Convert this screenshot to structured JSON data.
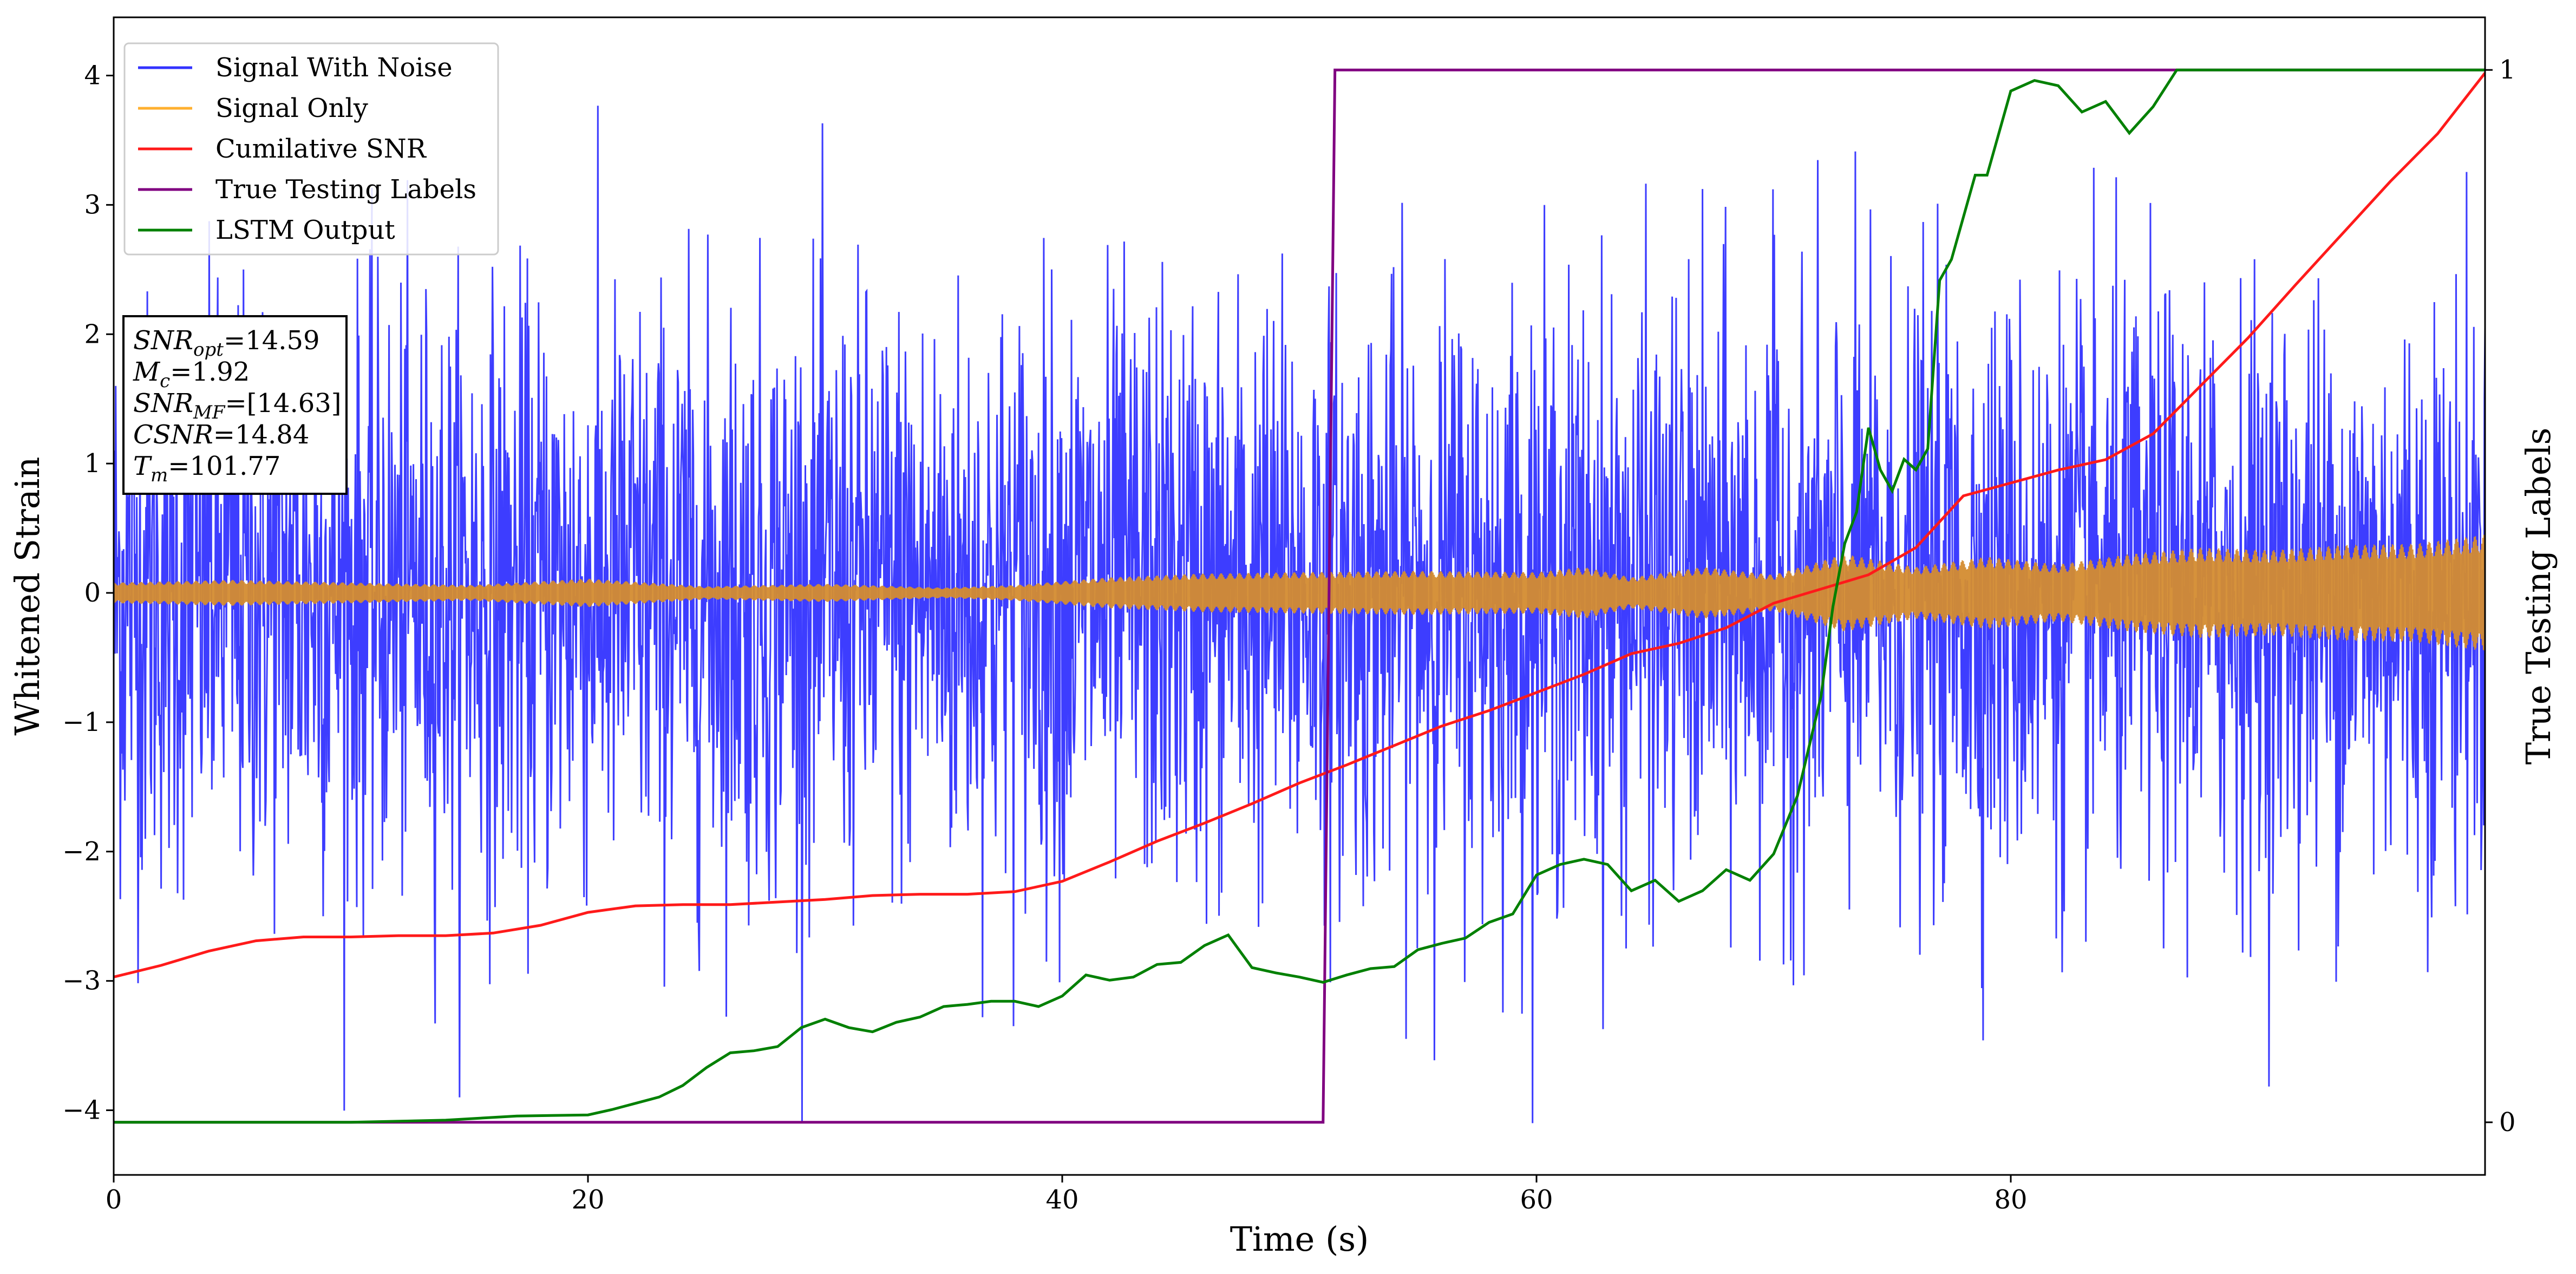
{
  "chart_data": {
    "type": "line",
    "xlabel": "Time (s)",
    "ylabel": "Whitened Strain",
    "ylabel_right": "True Testing Labels",
    "xlim": [
      0,
      100
    ],
    "ylim": [
      -4.5,
      4.45
    ],
    "ylim_right": [
      -0.05,
      1.05
    ],
    "x_ticks": [
      "0",
      "20",
      "40",
      "60",
      "80"
    ],
    "x_tick_values": [
      0,
      20,
      40,
      60,
      80
    ],
    "y_ticks": [
      "−4",
      "−3",
      "−2",
      "−1",
      "0",
      "1",
      "2",
      "3",
      "4"
    ],
    "y_tick_values": [
      -4,
      -3,
      -2,
      -1,
      0,
      1,
      2,
      3,
      4
    ],
    "y_right_ticks": [
      "0",
      "1"
    ],
    "y_right_tick_values": [
      0,
      1
    ],
    "legend_position": "top-left",
    "grid": false,
    "series": [
      {
        "name": "Signal With Noise",
        "color": "#3333ff",
        "axis": "left",
        "description_envelope": {
          "typical_abs": 1.3,
          "peak_abs": 4.1
        },
        "x": [
          0,
          100
        ],
        "y_range": [
          -4.1,
          4.05
        ]
      },
      {
        "name": "Signal Only",
        "color": "#ffb030",
        "axis": "left",
        "envelope_x": [
          0,
          5,
          10,
          15,
          20,
          25,
          30,
          35,
          38,
          42,
          46,
          50,
          55,
          60,
          62,
          64,
          67,
          70,
          73,
          76,
          79,
          82,
          85,
          88,
          91,
          94,
          97,
          100
        ],
        "envelope_y": [
          0.08,
          0.1,
          0.08,
          0.06,
          0.11,
          0.05,
          0.07,
          0.04,
          0.06,
          0.12,
          0.15,
          0.16,
          0.17,
          0.16,
          0.2,
          0.12,
          0.2,
          0.14,
          0.3,
          0.2,
          0.28,
          0.22,
          0.3,
          0.35,
          0.33,
          0.37,
          0.38,
          0.45
        ]
      },
      {
        "name": "Cumilative SNR",
        "color": "#ff1a1a",
        "axis": "left",
        "x": [
          0,
          2,
          4,
          6,
          8,
          10,
          12,
          14,
          16,
          18,
          20,
          22,
          24,
          26,
          28,
          30,
          32,
          34,
          36,
          38,
          40,
          42,
          44,
          46,
          48,
          50,
          52,
          54,
          56,
          58,
          60,
          62,
          64,
          66,
          68,
          70,
          72,
          74,
          76,
          78,
          80,
          82,
          84,
          86,
          88,
          90,
          92,
          94,
          96,
          98,
          100
        ],
        "y": [
          -2.97,
          -2.88,
          -2.77,
          -2.69,
          -2.66,
          -2.66,
          -2.65,
          -2.65,
          -2.63,
          -2.57,
          -2.47,
          -2.42,
          -2.41,
          -2.41,
          -2.39,
          -2.37,
          -2.34,
          -2.33,
          -2.33,
          -2.31,
          -2.23,
          -2.08,
          -1.92,
          -1.78,
          -1.63,
          -1.47,
          -1.33,
          -1.18,
          -1.03,
          -0.91,
          -0.77,
          -0.63,
          -0.47,
          -0.39,
          -0.27,
          -0.08,
          0.03,
          0.14,
          0.35,
          0.75,
          0.85,
          0.95,
          1.03,
          1.23,
          1.6,
          1.97,
          2.38,
          2.78,
          3.18,
          3.55,
          4.02
        ]
      },
      {
        "name": "True Testing Labels",
        "color": "#800080",
        "axis": "right",
        "x": [
          0,
          51,
          51.5,
          100
        ],
        "y": [
          0,
          0,
          1,
          1
        ]
      },
      {
        "name": "LSTM Output",
        "color": "#008000",
        "axis": "right",
        "x": [
          0,
          10,
          14,
          17,
          20,
          21,
          22,
          23,
          24,
          25,
          26,
          27,
          28,
          29,
          30,
          31,
          32,
          33,
          34,
          35,
          36,
          37,
          38,
          39,
          40,
          41,
          42,
          43,
          44,
          45,
          46,
          47,
          48,
          49,
          50,
          51,
          52,
          53,
          54,
          55,
          56,
          57,
          58,
          59,
          60,
          61,
          62,
          63,
          64,
          65,
          66,
          67,
          68,
          69,
          70,
          71,
          72,
          72.5,
          73,
          73.5,
          74,
          74.5,
          75,
          75.5,
          76,
          76.5,
          77,
          77.5,
          78,
          78.5,
          79,
          80,
          81,
          82,
          83,
          84,
          85,
          86,
          87,
          88,
          90,
          92,
          95,
          100
        ],
        "y": [
          0.0,
          0.0,
          0.002,
          0.006,
          0.007,
          0.012,
          0.018,
          0.024,
          0.035,
          0.052,
          0.066,
          0.068,
          0.072,
          0.09,
          0.098,
          0.09,
          0.086,
          0.095,
          0.1,
          0.11,
          0.112,
          0.115,
          0.115,
          0.11,
          0.12,
          0.14,
          0.135,
          0.138,
          0.15,
          0.152,
          0.168,
          0.178,
          0.147,
          0.142,
          0.138,
          0.133,
          0.14,
          0.146,
          0.148,
          0.164,
          0.17,
          0.175,
          0.19,
          0.198,
          0.235,
          0.245,
          0.25,
          0.245,
          0.22,
          0.23,
          0.21,
          0.22,
          0.24,
          0.23,
          0.255,
          0.31,
          0.405,
          0.49,
          0.55,
          0.58,
          0.66,
          0.62,
          0.6,
          0.63,
          0.62,
          0.64,
          0.8,
          0.82,
          0.86,
          0.9,
          0.9,
          0.98,
          0.99,
          0.985,
          0.96,
          0.97,
          0.94,
          0.965,
          1.0,
          1.0,
          1.0,
          1.0,
          1.0,
          1.0
        ]
      }
    ],
    "legend": [
      "Signal With Noise",
      "Signal Only",
      "Cumilative SNR",
      "True Testing Labels",
      "LSTM Output"
    ]
  },
  "info_box": {
    "lines": [
      {
        "label": "SNR",
        "sub": "opt",
        "value": "=14.59"
      },
      {
        "label": "M",
        "sub": "c",
        "value": "=1.92"
      },
      {
        "label": "SNR",
        "sub": "MF",
        "value": "=[14.63]"
      },
      {
        "label": "CSNR",
        "sub": "",
        "value": "=14.84"
      },
      {
        "label": "T",
        "sub": "m",
        "value": "=101.77"
      }
    ]
  }
}
